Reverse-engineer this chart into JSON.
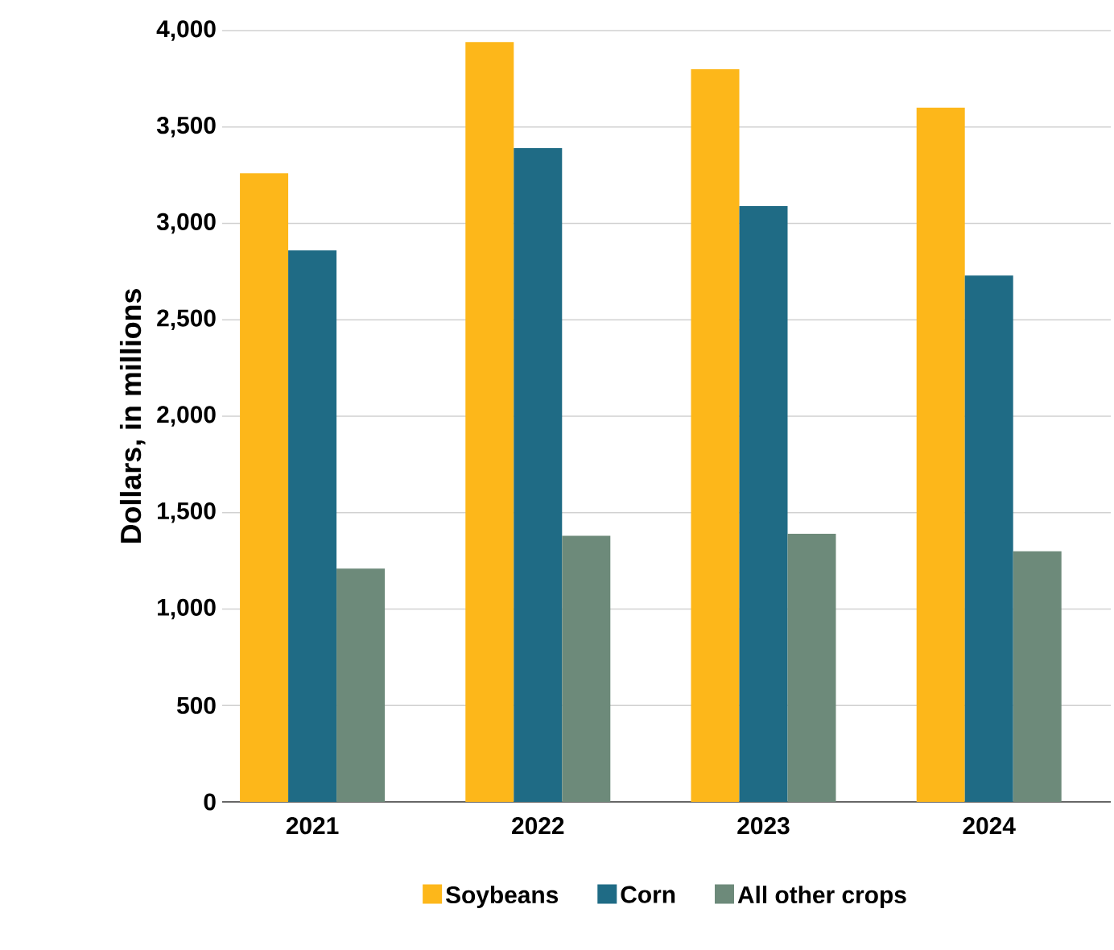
{
  "chart_data": {
    "type": "bar",
    "ylabel": "Dollars, in millions",
    "categories": [
      "2021",
      "2022",
      "2023",
      "2024"
    ],
    "series": [
      {
        "name": "Soybeans",
        "color": "#fdb71a",
        "values": [
          3260,
          3940,
          3800,
          3600
        ]
      },
      {
        "name": "Corn",
        "color": "#1f6b85",
        "values": [
          2860,
          3390,
          3090,
          2730
        ]
      },
      {
        "name": "All other crops",
        "color": "#6d8a7a",
        "values": [
          1210,
          1380,
          1390,
          1300
        ]
      }
    ],
    "ylim": [
      0,
      4000
    ],
    "yticks": [
      {
        "value": 0,
        "label": "0"
      },
      {
        "value": 500,
        "label": "500"
      },
      {
        "value": 1000,
        "label": "1,000"
      },
      {
        "value": 1500,
        "label": "1,500"
      },
      {
        "value": 2000,
        "label": "2,000"
      },
      {
        "value": 2500,
        "label": "2,500"
      },
      {
        "value": 3000,
        "label": "3,000"
      },
      {
        "value": 3500,
        "label": "3,500"
      },
      {
        "value": 4000,
        "label": "4,000"
      }
    ],
    "grid": "y",
    "legend": "bottom"
  }
}
